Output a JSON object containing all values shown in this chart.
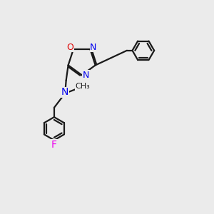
{
  "bg_color": "#ebebeb",
  "bond_color": "#1a1a1a",
  "N_color": "#0000ee",
  "O_color": "#dd0000",
  "F_color": "#ee00ee",
  "line_width": 1.6,
  "figsize": [
    3.0,
    3.0
  ],
  "dpi": 100,
  "xlim": [
    0,
    10
  ],
  "ylim": [
    0,
    10
  ]
}
